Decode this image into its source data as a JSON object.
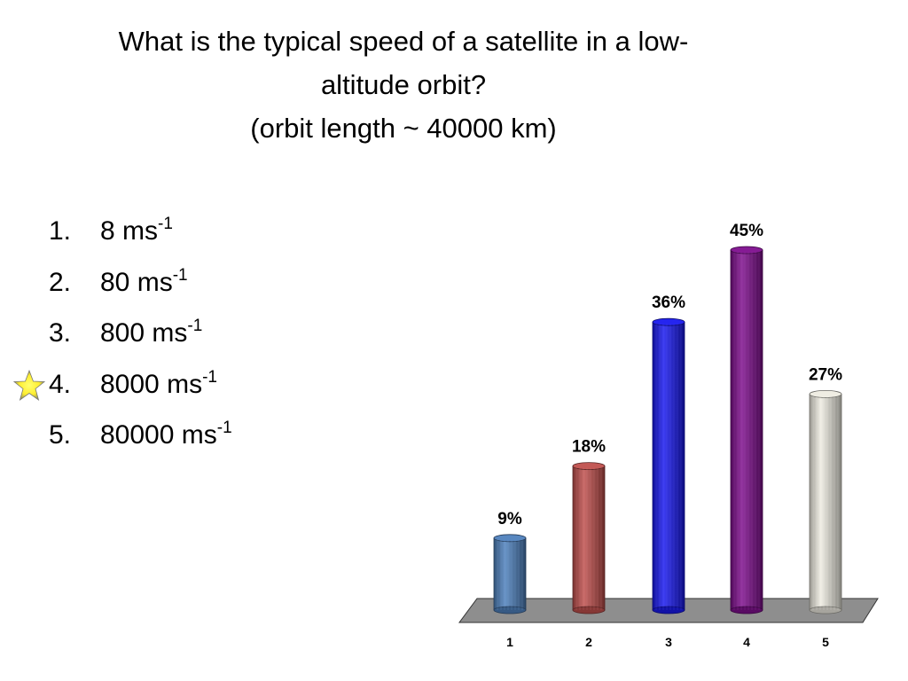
{
  "title": {
    "line1": "What is the typical speed of a satellite in a low-",
    "line2": "altitude orbit?",
    "line3": "(orbit length ~ 40000 km)"
  },
  "options": [
    {
      "number": "1.",
      "value": "8 ms",
      "exponent": "-1"
    },
    {
      "number": "2.",
      "value": "80 ms",
      "exponent": "-1"
    },
    {
      "number": "3.",
      "value": "800 ms",
      "exponent": "-1"
    },
    {
      "number": "4.",
      "value": "8000 ms",
      "exponent": "-1",
      "correct": true
    },
    {
      "number": "5.",
      "value": "80000 ms",
      "exponent": "-1"
    }
  ],
  "correct_marker_icon": "star-icon",
  "chart_data": {
    "type": "bar",
    "categories": [
      "1",
      "2",
      "3",
      "4",
      "5"
    ],
    "values": [
      9,
      18,
      36,
      45,
      27
    ],
    "labels": [
      "9%",
      "18%",
      "36%",
      "45%",
      "27%"
    ],
    "ylim": [
      0,
      45
    ],
    "colors": [
      "#4f81bd",
      "#c0504d",
      "#1a1aee",
      "#7f0f8e",
      "#eeece1"
    ],
    "grid": false,
    "legend": "none"
  }
}
